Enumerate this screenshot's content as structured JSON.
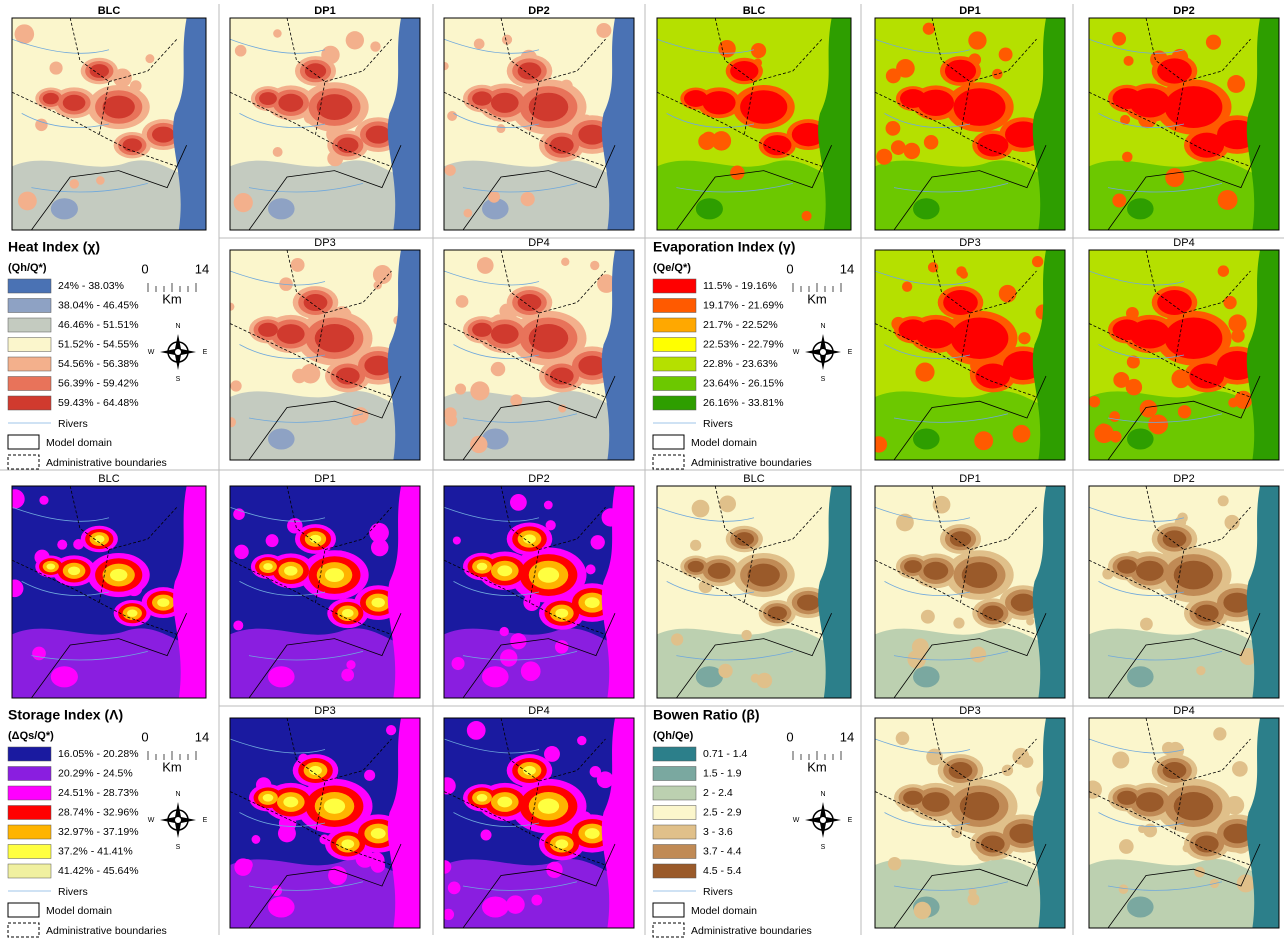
{
  "quadrants": [
    {
      "title": "Heat Index (χ)",
      "unit": "(Qh/Q*)",
      "panels": [
        "BLC",
        "DP1",
        "DP2",
        "DP3",
        "DP4"
      ],
      "classes": [
        {
          "label": "24% - 38.03%",
          "color": "#4a72b4"
        },
        {
          "label": "38.04% - 46.45%",
          "color": "#8ea2c4"
        },
        {
          "label": "46.46% - 51.51%",
          "color": "#c4cbc0"
        },
        {
          "label": "51.52% - 54.55%",
          "color": "#fbf6cc"
        },
        {
          "label": "54.56% - 56.38%",
          "color": "#f3b08c"
        },
        {
          "label": "56.39% - 59.42%",
          "color": "#e8735a"
        },
        {
          "label": "59.43% - 64.48%",
          "color": "#d03a2e"
        }
      ],
      "rivers": "Rivers",
      "model_domain": "Model domain",
      "admin": "Administrative boundaries",
      "scale": {
        "start": 0,
        "end": 14,
        "unit": "Km"
      },
      "compass": {
        "n": "N",
        "s": "S",
        "e": "E",
        "w": "W"
      }
    },
    {
      "title": "Evaporation Index (γ)",
      "unit": "(Qe/Q*)",
      "panels": [
        "BLC",
        "DP1",
        "DP2",
        "DP3",
        "DP4"
      ],
      "classes": [
        {
          "label": "11.5% - 19.16%",
          "color": "#ff0000"
        },
        {
          "label": "19.17% - 21.69%",
          "color": "#ff5a00"
        },
        {
          "label": "21.7% - 22.52%",
          "color": "#ffa800"
        },
        {
          "label": "22.53% - 22.79%",
          "color": "#ffff00"
        },
        {
          "label": "22.8% - 23.63%",
          "color": "#b5e000"
        },
        {
          "label": "23.64% - 26.15%",
          "color": "#6cc800"
        },
        {
          "label": "26.16% - 33.81%",
          "color": "#2e9e00"
        }
      ],
      "rivers": "Rivers",
      "model_domain": "Model domain",
      "admin": "Administrative boundaries",
      "scale": {
        "start": 0,
        "end": 14,
        "unit": "Km"
      },
      "compass": {
        "n": "N",
        "s": "S",
        "e": "E",
        "w": "W"
      }
    },
    {
      "title": "Storage Index (Λ)",
      "unit": "(ΔQs/Q*)",
      "panels": [
        "BLC",
        "DP1",
        "DP2",
        "DP3",
        "DP4"
      ],
      "classes": [
        {
          "label": "16.05% - 20.28%",
          "color": "#1a1aa0"
        },
        {
          "label": "20.29% - 24.5%",
          "color": "#8a1ee0"
        },
        {
          "label": "24.51% - 28.73%",
          "color": "#ff00ff"
        },
        {
          "label": "28.74% - 32.96%",
          "color": "#ff0000"
        },
        {
          "label": "32.97% - 37.19%",
          "color": "#ffb400"
        },
        {
          "label": "37.2% - 41.41%",
          "color": "#ffff40"
        },
        {
          "label": "41.42% - 45.64%",
          "color": "#f0f0a0"
        }
      ],
      "rivers": "Rivers",
      "model_domain": "Model domain",
      "admin": "Administrative boundaries",
      "scale": {
        "start": 0,
        "end": 14,
        "unit": "Km"
      },
      "compass": {
        "n": "N",
        "s": "S",
        "e": "E",
        "w": "W"
      }
    },
    {
      "title": "Bowen Ratio (β)",
      "unit": "(Qh/Qe)",
      "panels": [
        "BLC",
        "DP1",
        "DP2",
        "DP3",
        "DP4"
      ],
      "classes": [
        {
          "label": "0.71 - 1.4",
          "color": "#2c7f8a"
        },
        {
          "label": "1.5 - 1.9",
          "color": "#7aa8a0"
        },
        {
          "label": "2 - 2.4",
          "color": "#bcd0b0"
        },
        {
          "label": "2.5 - 2.9",
          "color": "#fbf6cc"
        },
        {
          "label": "3 - 3.6",
          "color": "#e0c08a"
        },
        {
          "label": "3.7 - 4.4",
          "color": "#c08a55"
        },
        {
          "label": "4.5 - 5.4",
          "color": "#9a5a2a"
        }
      ],
      "rivers": "Rivers",
      "model_domain": "Model domain",
      "admin": "Administrative boundaries",
      "scale": {
        "start": 0,
        "end": 14,
        "unit": "Km"
      },
      "compass": {
        "n": "N",
        "s": "S",
        "e": "E",
        "w": "W"
      }
    }
  ]
}
